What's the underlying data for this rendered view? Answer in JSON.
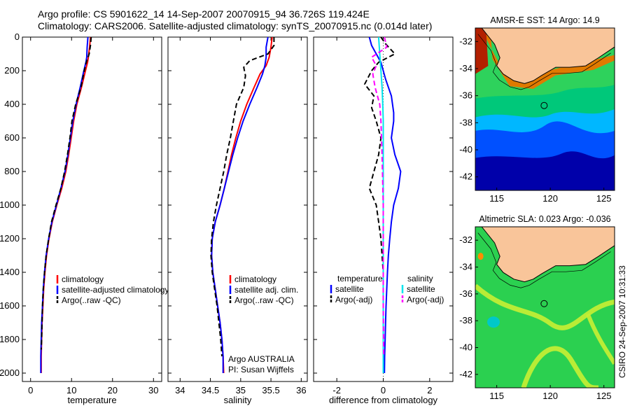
{
  "header": {
    "line1": "Argo profile: CS 5901622_14 14-Sep-2007 20070915_94 36.726S 119.424E",
    "line2": "Climatology: CARS2006. Satellite-adjusted climatology: synTS_20070915.nc (0.014d later)"
  },
  "side_label": "CSIRO 24-Sep-2007 10:31:33",
  "colors": {
    "climatology": "#ff0000",
    "satellite": "#0000ff",
    "argo": "#000000",
    "satellite_salinity": "#00e5ee",
    "argo_salinity": "#ff00ff",
    "land": "#f9c59a"
  },
  "chart_data": [
    {
      "id": "temperature",
      "type": "line",
      "xlabel": "temperature",
      "xlim": [
        -2,
        32
      ],
      "xticks": [
        0,
        10,
        20,
        30
      ],
      "ylim": [
        2050,
        0
      ],
      "yticks": [
        0,
        200,
        400,
        600,
        800,
        1000,
        1200,
        1400,
        1600,
        1800,
        2000
      ],
      "legend": {
        "position": "lower-right",
        "items": [
          "climatology",
          "satellite-adjusted climatology",
          "Argo(..raw -QC)"
        ]
      },
      "series": [
        {
          "name": "climatology",
          "style": "solid",
          "color": "climatology",
          "points": [
            [
              14.6,
              0
            ],
            [
              14.4,
              60
            ],
            [
              14.1,
              120
            ],
            [
              13.9,
              150
            ],
            [
              13.4,
              200
            ],
            [
              12.4,
              300
            ],
            [
              11.3,
              400
            ],
            [
              10.5,
              500
            ],
            [
              9.9,
              600
            ],
            [
              9.3,
              700
            ],
            [
              8.6,
              800
            ],
            [
              7.6,
              900
            ],
            [
              6.4,
              1000
            ],
            [
              5.3,
              1100
            ],
            [
              4.5,
              1200
            ],
            [
              3.9,
              1300
            ],
            [
              3.5,
              1400
            ],
            [
              3.2,
              1500
            ],
            [
              3.0,
              1600
            ],
            [
              2.8,
              1700
            ],
            [
              2.7,
              1800
            ],
            [
              2.6,
              1900
            ],
            [
              2.6,
              2000
            ]
          ]
        },
        {
          "name": "satellite-adjusted climatology",
          "style": "solid",
          "color": "satellite",
          "points": [
            [
              14.0,
              0
            ],
            [
              13.8,
              60
            ],
            [
              13.7,
              120
            ],
            [
              13.5,
              150
            ],
            [
              13.0,
              200
            ],
            [
              12.1,
              300
            ],
            [
              11.1,
              400
            ],
            [
              10.3,
              500
            ],
            [
              9.7,
              600
            ],
            [
              9.1,
              700
            ],
            [
              8.4,
              800
            ],
            [
              7.4,
              900
            ],
            [
              6.3,
              1000
            ],
            [
              5.2,
              1100
            ],
            [
              4.4,
              1200
            ],
            [
              3.8,
              1300
            ],
            [
              3.4,
              1400
            ],
            [
              3.1,
              1500
            ],
            [
              2.9,
              1600
            ],
            [
              2.7,
              1700
            ],
            [
              2.6,
              1800
            ],
            [
              2.5,
              1900
            ],
            [
              2.5,
              2000
            ]
          ]
        },
        {
          "name": "Argo(..raw -QC)",
          "style": "dashed",
          "color": "argo",
          "points": [
            [
              14.8,
              0
            ],
            [
              14.6,
              50
            ],
            [
              14.3,
              100
            ],
            [
              13.6,
              150
            ],
            [
              13.1,
              200
            ],
            [
              12.3,
              300
            ],
            [
              11.0,
              400
            ],
            [
              10.1,
              500
            ],
            [
              9.6,
              600
            ],
            [
              9.0,
              700
            ],
            [
              8.3,
              800
            ],
            [
              7.4,
              900
            ],
            [
              6.2,
              1000
            ],
            [
              5.1,
              1100
            ],
            [
              4.4,
              1200
            ],
            [
              3.8,
              1300
            ],
            [
              3.4,
              1400
            ],
            [
              3.1,
              1500
            ],
            [
              2.9,
              1600
            ],
            [
              2.8,
              1700
            ],
            [
              2.7,
              1800
            ],
            [
              2.6,
              1860
            ]
          ]
        }
      ]
    },
    {
      "id": "salinity",
      "type": "line",
      "xlabel": "salinity",
      "xlim": [
        33.8,
        36.1
      ],
      "xticks": [
        34,
        34.5,
        35,
        35.5,
        36
      ],
      "ylim": [
        2050,
        0
      ],
      "yticks": [
        0,
        200,
        400,
        600,
        800,
        1000,
        1200,
        1400,
        1600,
        1800,
        2000
      ],
      "legend": {
        "position": "lower-right",
        "items": [
          "climatology",
          "satellite adj. clim.",
          "Argo(..raw -QC)"
        ]
      },
      "annotation": [
        "Argo AUSTRALIA",
        "PI: Susan Wijffels"
      ],
      "series": [
        {
          "name": "climatology",
          "style": "solid",
          "color": "climatology",
          "points": [
            [
              35.52,
              0
            ],
            [
              35.5,
              60
            ],
            [
              35.47,
              120
            ],
            [
              35.42,
              170
            ],
            [
              35.32,
              220
            ],
            [
              35.22,
              300
            ],
            [
              35.1,
              400
            ],
            [
              35.0,
              500
            ],
            [
              34.92,
              600
            ],
            [
              34.85,
              700
            ],
            [
              34.79,
              800
            ],
            [
              34.73,
              900
            ],
            [
              34.66,
              1000
            ],
            [
              34.58,
              1100
            ],
            [
              34.53,
              1200
            ],
            [
              34.52,
              1300
            ],
            [
              34.54,
              1400
            ],
            [
              34.58,
              1500
            ],
            [
              34.62,
              1600
            ],
            [
              34.66,
              1700
            ],
            [
              34.69,
              1800
            ],
            [
              34.71,
              1900
            ],
            [
              34.72,
              2000
            ]
          ]
        },
        {
          "name": "satellite adj. clim.",
          "style": "solid",
          "color": "satellite",
          "points": [
            [
              35.45,
              0
            ],
            [
              35.42,
              60
            ],
            [
              35.42,
              120
            ],
            [
              35.4,
              170
            ],
            [
              35.36,
              220
            ],
            [
              35.27,
              300
            ],
            [
              35.15,
              400
            ],
            [
              35.04,
              500
            ],
            [
              34.95,
              600
            ],
            [
              34.87,
              700
            ],
            [
              34.8,
              800
            ],
            [
              34.73,
              900
            ],
            [
              34.66,
              1000
            ],
            [
              34.58,
              1100
            ],
            [
              34.53,
              1200
            ],
            [
              34.52,
              1300
            ],
            [
              34.54,
              1400
            ],
            [
              34.58,
              1500
            ],
            [
              34.62,
              1600
            ],
            [
              34.66,
              1700
            ],
            [
              34.69,
              1800
            ],
            [
              34.71,
              1900
            ],
            [
              34.71,
              2000
            ]
          ]
        },
        {
          "name": "Argo(..raw -QC)",
          "style": "dashed",
          "color": "argo",
          "points": [
            [
              35.55,
              0
            ],
            [
              35.55,
              50
            ],
            [
              35.45,
              100
            ],
            [
              35.15,
              140
            ],
            [
              35.05,
              180
            ],
            [
              35.08,
              230
            ],
            [
              35.05,
              300
            ],
            [
              34.93,
              400
            ],
            [
              34.88,
              500
            ],
            [
              34.83,
              600
            ],
            [
              34.77,
              700
            ],
            [
              34.72,
              800
            ],
            [
              34.66,
              900
            ],
            [
              34.6,
              1000
            ],
            [
              34.55,
              1100
            ],
            [
              34.52,
              1200
            ],
            [
              34.51,
              1300
            ],
            [
              34.53,
              1400
            ],
            [
              34.57,
              1500
            ],
            [
              34.61,
              1600
            ],
            [
              34.64,
              1700
            ],
            [
              34.67,
              1800
            ],
            [
              34.69,
              1900
            ]
          ]
        }
      ]
    },
    {
      "id": "difference",
      "type": "line",
      "xlabel": "difference from climatology",
      "xlim": [
        -3,
        3
      ],
      "xticks": [
        -2,
        0,
        2
      ],
      "ylim": [
        2050,
        0
      ],
      "yticks": [
        0,
        200,
        400,
        600,
        800,
        1000,
        1200,
        1400,
        1600,
        1800,
        2000
      ],
      "zero_line": "dotted",
      "legend": {
        "position": "lower",
        "headers": [
          "temperature",
          "salinity"
        ],
        "items": [
          "satellite",
          "Argo(-adj)",
          "satellite",
          "Argo(-adj)"
        ]
      },
      "series": [
        {
          "name": "satellite",
          "group": "temperature",
          "style": "solid",
          "color": "satellite",
          "points": [
            [
              -0.6,
              0
            ],
            [
              -0.5,
              50
            ],
            [
              -0.3,
              100
            ],
            [
              -0.1,
              150
            ],
            [
              0.1,
              250
            ],
            [
              0.35,
              350
            ],
            [
              0.45,
              450
            ],
            [
              0.45,
              500
            ],
            [
              0.35,
              600
            ],
            [
              0.5,
              700
            ],
            [
              0.75,
              800
            ],
            [
              0.65,
              900
            ],
            [
              0.45,
              1000
            ],
            [
              0.35,
              1100
            ],
            [
              0.28,
              1200
            ],
            [
              0.22,
              1300
            ],
            [
              0.18,
              1400
            ],
            [
              0.15,
              1500
            ],
            [
              0.12,
              1600
            ],
            [
              0.1,
              1700
            ],
            [
              0.08,
              1800
            ],
            [
              0.06,
              1900
            ],
            [
              0.05,
              2000
            ]
          ]
        },
        {
          "name": "Argo(-adj)",
          "group": "temperature",
          "style": "dashed",
          "color": "argo",
          "points": [
            [
              -0.1,
              0
            ],
            [
              0.1,
              40
            ],
            [
              0.5,
              100
            ],
            [
              -0.2,
              150
            ],
            [
              -0.5,
              200
            ],
            [
              -0.8,
              280
            ],
            [
              -0.4,
              350
            ],
            [
              -0.5,
              420
            ],
            [
              -0.3,
              500
            ],
            [
              -0.1,
              600
            ],
            [
              -0.2,
              700
            ],
            [
              -0.4,
              800
            ],
            [
              -0.6,
              900
            ],
            [
              -0.3,
              1000
            ],
            [
              -0.2,
              1100
            ],
            [
              -0.1,
              1200
            ],
            [
              -0.05,
              1300
            ],
            [
              0.0,
              1400
            ],
            [
              0.0,
              1500
            ],
            [
              0.0,
              1600
            ],
            [
              0.0,
              1700
            ],
            [
              0.0,
              1800
            ],
            [
              0.0,
              1860
            ]
          ]
        },
        {
          "name": "satellite",
          "group": "salinity",
          "style": "solid",
          "color": "satellite_salinity",
          "points": [
            [
              -0.2,
              0
            ],
            [
              -0.15,
              100
            ],
            [
              -0.1,
              200
            ],
            [
              -0.05,
              300
            ],
            [
              -0.02,
              400
            ],
            [
              0,
              500
            ],
            [
              0,
              700
            ],
            [
              0,
              1000
            ],
            [
              0,
              1300
            ],
            [
              0,
              1600
            ],
            [
              0,
              2000
            ]
          ]
        },
        {
          "name": "Argo(-adj)",
          "group": "salinity",
          "style": "dashed",
          "color": "argo_salinity",
          "points": [
            [
              0.05,
              0
            ],
            [
              0.15,
              60
            ],
            [
              -0.5,
              120
            ],
            [
              -0.3,
              170
            ],
            [
              -0.45,
              220
            ],
            [
              -0.35,
              300
            ],
            [
              -0.15,
              400
            ],
            [
              -0.1,
              500
            ],
            [
              -0.05,
              700
            ],
            [
              0,
              1000
            ],
            [
              0,
              1300
            ],
            [
              0,
              1600
            ],
            [
              0.02,
              1900
            ]
          ]
        }
      ]
    },
    {
      "id": "sst-map",
      "type": "heatmap",
      "title": "AMSR-E SST: 14 Argo: 14.9",
      "xlim": [
        113,
        126
      ],
      "ylim": [
        -43,
        -31
      ],
      "xticks": [
        115,
        120,
        125
      ],
      "yticks": [
        -32,
        -34,
        -36,
        -38,
        -40,
        -42
      ],
      "marker": [
        119.424,
        -36.726
      ],
      "bands": [
        {
          "zone": "far offshore (south)",
          "color": "#0000aa"
        },
        {
          "zone": "south",
          "color": "#0050ff"
        },
        {
          "zone": "mid",
          "color": "#00b7ff"
        },
        {
          "zone": "mid-north",
          "color": "#00c87a"
        },
        {
          "zone": "north",
          "color": "#2ed25c"
        },
        {
          "zone": "coastal",
          "color": "#e07a00"
        },
        {
          "zone": "coastal warm",
          "color": "#b22000"
        }
      ]
    },
    {
      "id": "sla-map",
      "type": "heatmap",
      "title": "Altimetric SLA: 0.023 Argo: -0.036",
      "xlim": [
        113,
        126
      ],
      "ylim": [
        -43,
        -31
      ],
      "xticks": [
        115,
        120,
        125
      ],
      "yticks": [
        -32,
        -34,
        -36,
        -38,
        -40,
        -42
      ],
      "marker": [
        119.424,
        -36.726
      ],
      "bands": [
        {
          "zone": "background",
          "color": "#2bd050"
        },
        {
          "zone": "ridge",
          "color": "#c9ee33"
        },
        {
          "zone": "low",
          "color": "#00c8c8"
        },
        {
          "zone": "high",
          "color": "#ff8c00"
        }
      ]
    }
  ]
}
